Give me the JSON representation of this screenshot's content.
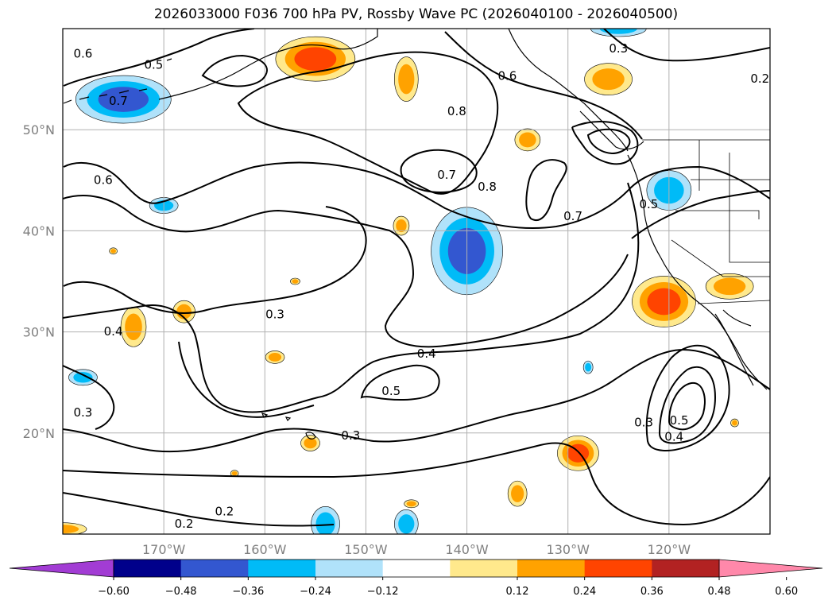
{
  "title": "2026033000 F036 700 hPa PV, Rossby Wave PC (2026040100 - 2026040500)",
  "map": {
    "lon_range": [
      -180,
      -110
    ],
    "lat_range": [
      10,
      60
    ],
    "lat_labels": [
      {
        "lat": 50,
        "text": "50°N"
      },
      {
        "lat": 40,
        "text": "40°N"
      },
      {
        "lat": 30,
        "text": "30°N"
      },
      {
        "lat": 20,
        "text": "20°N"
      }
    ],
    "lon_labels": [
      {
        "lon": -170,
        "text": "170°W"
      },
      {
        "lon": -160,
        "text": "160°W"
      },
      {
        "lon": -150,
        "text": "150°W"
      },
      {
        "lon": -140,
        "text": "140°W"
      },
      {
        "lon": -130,
        "text": "130°W"
      },
      {
        "lon": -120,
        "text": "120°W"
      }
    ],
    "contour_labels": [
      {
        "text": "0.6",
        "lon": -178,
        "lat": 57.5
      },
      {
        "text": "0.5",
        "lon": -171,
        "lat": 56.4
      },
      {
        "text": "0.7",
        "lon": -174.5,
        "lat": 52.8
      },
      {
        "text": "0.6",
        "lon": -176,
        "lat": 45
      },
      {
        "text": "0.8",
        "lon": -141,
        "lat": 51.8
      },
      {
        "text": "0.6",
        "lon": -136,
        "lat": 55.3
      },
      {
        "text": "0.3",
        "lon": -125,
        "lat": 58
      },
      {
        "text": "0.2",
        "lon": -111,
        "lat": 55
      },
      {
        "text": "0.7",
        "lon": -142,
        "lat": 45.5
      },
      {
        "text": "0.8",
        "lon": -138,
        "lat": 44.3
      },
      {
        "text": "0.7",
        "lon": -129.5,
        "lat": 41.4
      },
      {
        "text": "0.5",
        "lon": -122,
        "lat": 42.6
      },
      {
        "text": "0.3",
        "lon": -159,
        "lat": 31.7
      },
      {
        "text": "0.4",
        "lon": -175,
        "lat": 30
      },
      {
        "text": "0.4",
        "lon": -144,
        "lat": 27.8
      },
      {
        "text": "0.5",
        "lon": -147.5,
        "lat": 24.1
      },
      {
        "text": "0.3",
        "lon": -151.5,
        "lat": 19.7
      },
      {
        "text": "0.3",
        "lon": -178,
        "lat": 22
      },
      {
        "text": "0.3",
        "lon": -122.5,
        "lat": 21
      },
      {
        "text": "0.5",
        "lon": -119,
        "lat": 21.2
      },
      {
        "text": "0.4",
        "lon": -119.5,
        "lat": 19.6
      },
      {
        "text": "0.2",
        "lon": -164,
        "lat": 12.2
      },
      {
        "text": "0.2",
        "lon": -168,
        "lat": 11
      }
    ],
    "anomalies": [
      {
        "lon": -174,
        "lat": 53,
        "rx": 60,
        "ry": 30,
        "level": -0.42
      },
      {
        "lon": -140,
        "lat": 38,
        "rx": 45,
        "ry": 55,
        "level": -0.42
      },
      {
        "lon": -120,
        "lat": 44,
        "rx": 28,
        "ry": 25,
        "level": -0.36
      },
      {
        "lon": -170,
        "lat": 42.5,
        "rx": 18,
        "ry": 10,
        "level": -0.3
      },
      {
        "lon": -178,
        "lat": 25.5,
        "rx": 18,
        "ry": 10,
        "level": -0.3
      },
      {
        "lon": -125,
        "lat": 60,
        "rx": 35,
        "ry": 10,
        "level": -0.3
      },
      {
        "lon": -154,
        "lat": 11,
        "rx": 18,
        "ry": 22,
        "level": -0.3
      },
      {
        "lon": -146,
        "lat": 11,
        "rx": 15,
        "ry": 18,
        "level": -0.3
      },
      {
        "lon": -128,
        "lat": 26.5,
        "rx": 6,
        "ry": 8,
        "level": -0.3
      },
      {
        "lon": -155,
        "lat": 57,
        "rx": 50,
        "ry": 28,
        "level": 0.42
      },
      {
        "lon": -120.5,
        "lat": 33,
        "rx": 40,
        "ry": 32,
        "level": 0.4
      },
      {
        "lon": -129,
        "lat": 18,
        "rx": 26,
        "ry": 22,
        "level": 0.38
      },
      {
        "lon": -126,
        "lat": 55,
        "rx": 30,
        "ry": 20,
        "level": 0.34
      },
      {
        "lon": -146,
        "lat": 55,
        "rx": 15,
        "ry": 28,
        "level": 0.26
      },
      {
        "lon": -134,
        "lat": 49,
        "rx": 16,
        "ry": 14,
        "level": 0.26
      },
      {
        "lon": -173,
        "lat": 30.5,
        "rx": 16,
        "ry": 25,
        "level": 0.28
      },
      {
        "lon": -168,
        "lat": 32,
        "rx": 14,
        "ry": 14,
        "level": 0.26
      },
      {
        "lon": -159,
        "lat": 27.5,
        "rx": 12,
        "ry": 8,
        "level": 0.26
      },
      {
        "lon": -146.5,
        "lat": 40.5,
        "rx": 10,
        "ry": 12,
        "level": 0.26
      },
      {
        "lon": -155.5,
        "lat": 19,
        "rx": 12,
        "ry": 10,
        "level": 0.26
      },
      {
        "lon": -135,
        "lat": 14,
        "rx": 12,
        "ry": 16,
        "level": 0.26
      },
      {
        "lon": -114,
        "lat": 34.5,
        "rx": 30,
        "ry": 16,
        "level": 0.28
      },
      {
        "lon": -180,
        "lat": 10.5,
        "rx": 30,
        "ry": 8,
        "level": 0.26
      },
      {
        "lon": -145.5,
        "lat": 13,
        "rx": 9,
        "ry": 5,
        "level": 0.26
      },
      {
        "lon": -163,
        "lat": 16,
        "rx": 5,
        "ry": 4,
        "level": 0.26
      },
      {
        "lon": -113.5,
        "lat": 21,
        "rx": 5,
        "ry": 5,
        "level": 0.26
      },
      {
        "lon": -175,
        "lat": 38,
        "rx": 5,
        "ry": 4,
        "level": 0.26
      },
      {
        "lon": -157,
        "lat": 35,
        "rx": 6,
        "ry": 4,
        "level": 0.26
      }
    ]
  },
  "colorbar": {
    "colors": [
      "#a23cd4",
      "#00008b",
      "#3357d0",
      "#00bbf7",
      "#b0e2fa",
      "#ffffff",
      "#ffe98c",
      "#ffa200",
      "#ff4400",
      "#b22222",
      "#ff88aa",
      "#ff88aa"
    ],
    "bin_colors": [
      "#00008b",
      "#3357d0",
      "#00bbf7",
      "#b0e2fa",
      "#ffffff",
      "#ffe98c",
      "#ffa200",
      "#ff4400",
      "#b22222"
    ],
    "under_color": "#a23cd4",
    "over_color": "#ff88aa",
    "ticks": [
      "−0.60",
      "−0.48",
      "−0.36",
      "−0.24",
      "−0.12",
      "0.12",
      "0.24",
      "0.36",
      "0.48",
      "0.60"
    ]
  }
}
